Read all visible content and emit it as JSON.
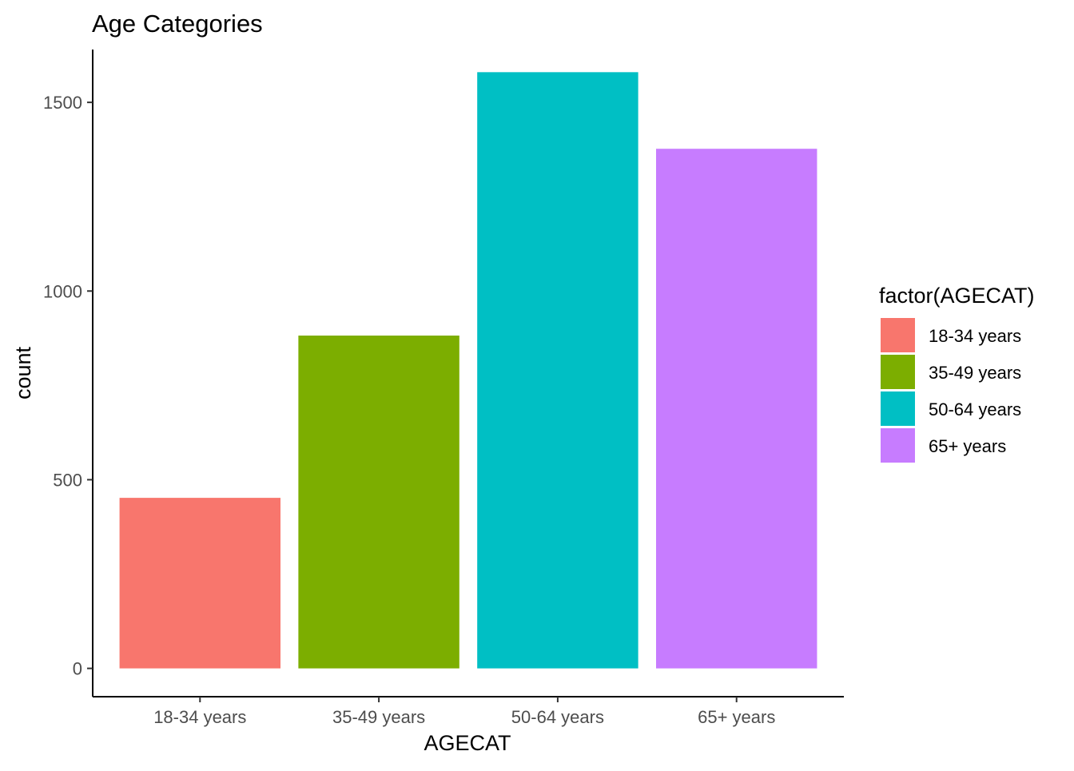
{
  "chart_data": {
    "type": "bar",
    "title": "Age Categories",
    "xlabel": "AGECAT",
    "ylabel": "count",
    "categories": [
      "18-34 years",
      "35-49 years",
      "50-64 years",
      "65+ years"
    ],
    "values": [
      452,
      882,
      1580,
      1377
    ],
    "colors": [
      "#F8766D",
      "#7CAE00",
      "#00BFC4",
      "#C77CFF"
    ],
    "ylim": [
      -75,
      1640
    ],
    "yticks": [
      0,
      500,
      1000,
      1500
    ],
    "grid": false,
    "legend": {
      "title": "factor(AGECAT)",
      "position": "right",
      "items": [
        "18-34 years",
        "35-49 years",
        "50-64 years",
        "65+ years"
      ]
    }
  }
}
